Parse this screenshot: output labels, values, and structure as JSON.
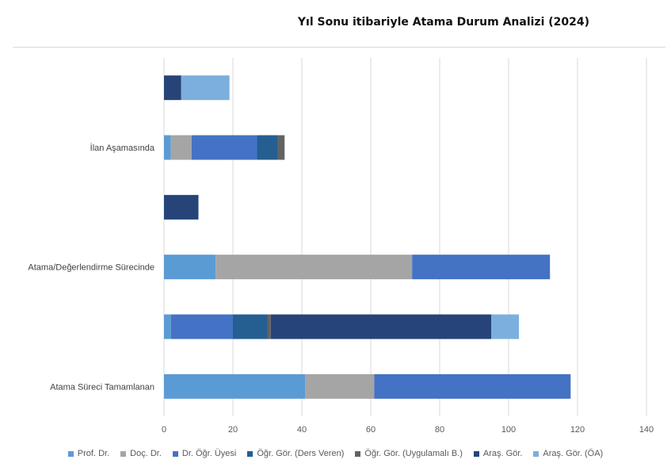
{
  "chart_data": {
    "type": "bar",
    "orientation": "horizontal",
    "stacked": true,
    "title": "Yıl Sonu itibariyle Atama Durum Analizi (2024)",
    "categories": [
      "Atama Süreci Tamamlanan",
      "",
      "Atama/Değerlendirme Sürecinde",
      "",
      "İlan Aşamasında",
      ""
    ],
    "series": [
      {
        "name": "Prof. Dr.",
        "color": "#5b9bd5",
        "values": [
          41,
          2,
          15,
          0,
          2,
          0
        ]
      },
      {
        "name": "Doç. Dr.",
        "color": "#a5a5a5",
        "values": [
          20,
          0,
          57,
          0,
          6,
          0
        ]
      },
      {
        "name": "Dr. Öğr. Üyesi",
        "color": "#4472c4",
        "values": [
          57,
          18,
          40,
          0,
          19,
          0
        ]
      },
      {
        "name": "Öğr. Gör. (Ders Veren)",
        "color": "#255e91",
        "values": [
          0,
          10,
          0,
          0,
          6,
          0
        ]
      },
      {
        "name": "Öğr. Gör. (Uygulamalı B.)",
        "color": "#636363",
        "values": [
          0,
          1,
          0,
          0,
          2,
          0
        ]
      },
      {
        "name": "Araş. Gör.",
        "color": "#264478",
        "values": [
          0,
          64,
          0,
          10,
          0,
          5
        ]
      },
      {
        "name": "Araş. Gör. (ÖA)",
        "color": "#7cafdd",
        "values": [
          0,
          8,
          0,
          0,
          0,
          14
        ]
      }
    ],
    "xlim": [
      0,
      140
    ],
    "xticks": [
      "0",
      "20",
      "40",
      "60",
      "80",
      "100",
      "120",
      "140"
    ],
    "grid": "vertical",
    "legend": "bottom"
  }
}
